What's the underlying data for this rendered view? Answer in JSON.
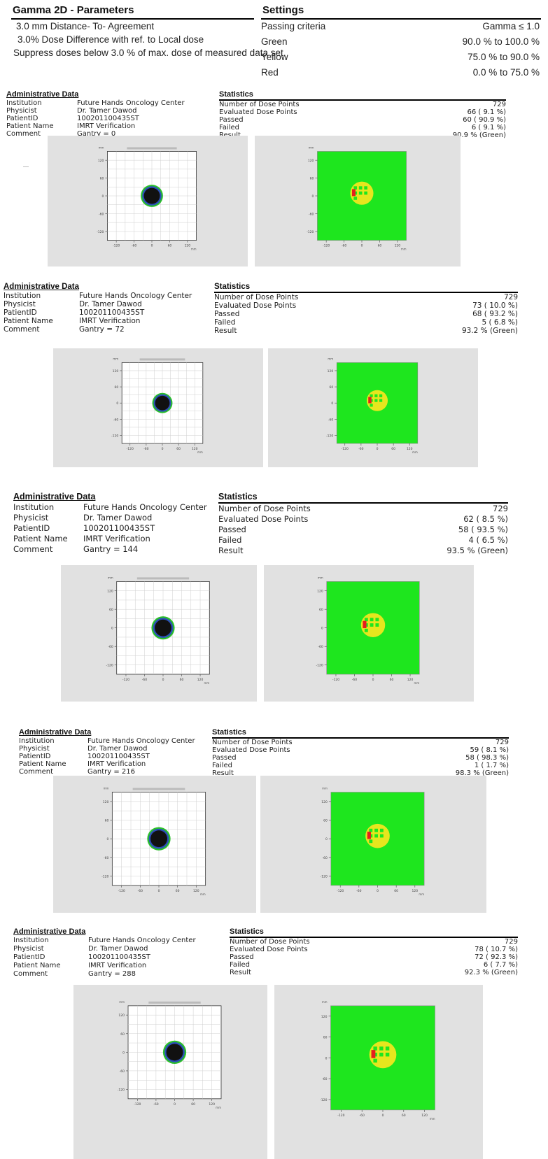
{
  "header": {
    "title": "Gamma 2D - Parameters",
    "lines": [
      "3.0 mm Distance- To- Agreement",
      "3.0% Dose Difference with ref. to Local dose",
      "Suppress doses below 3.0 % of max. dose of measured data set"
    ]
  },
  "settings": {
    "title": "Settings",
    "rows": [
      {
        "label": "Passing criteria",
        "value": "Gamma ≤ 1.0"
      },
      {
        "label": "Green",
        "value": "90.0 % to 100.0 %"
      },
      {
        "label": "Yellow",
        "value": "75.0 % to 90.0 %"
      },
      {
        "label": "Red",
        "value": "0.0 % to 75.0 %"
      }
    ]
  },
  "labels": {
    "admin_title": "Administrative Data",
    "stats_title": "Statistics",
    "institution": "Institution",
    "physicist": "Physicist",
    "patient_id": "PatientID",
    "patient_name": "Patient Name",
    "comment": "Comment",
    "num_points": "Number of Dose Points",
    "eval_points": "Evaluated Dose Points",
    "passed": "Passed",
    "failed": "Failed",
    "result": "Result"
  },
  "colors": {
    "green": "#1ee61e",
    "yellow": "#e6e61e",
    "red": "#e61e1e",
    "panel_bg": "#e1e1e1"
  },
  "sections": [
    {
      "institution": "Future Hands Oncology Center",
      "physicist": "Dr. Tamer Dawod",
      "patient_id": "100201100435ST",
      "patient_name": "IMRT Verification",
      "comment": "Gantry = 0",
      "num_points": "729",
      "eval_points": "66 ( 9.1 %)",
      "passed": "60 ( 90.9 %)",
      "failed": "6 ( 9.1 %)",
      "result": "90.9 % (Green)"
    },
    {
      "institution": "Future Hands Oncology Center",
      "physicist": "Dr. Tamer Dawod",
      "patient_id": "100201100435ST",
      "patient_name": "IMRT Verification",
      "comment": "Gantry = 72",
      "num_points": "729",
      "eval_points": "73 ( 10.0 %)",
      "passed": "68 ( 93.2 %)",
      "failed": "5 ( 6.8 %)",
      "result": "93.2 % (Green)"
    },
    {
      "institution": "Future Hands Oncology Center",
      "physicist": "Dr. Tamer Dawod",
      "patient_id": "100201100435ST",
      "patient_name": "IMRT Verification",
      "comment": "Gantry = 144",
      "num_points": "729",
      "eval_points": "62 ( 8.5 %)",
      "passed": "58 ( 93.5 %)",
      "failed": "4 ( 6.5 %)",
      "result": "93.5 % (Green)"
    },
    {
      "institution": "Future Hands Oncology Center",
      "physicist": "Dr. Tamer Dawod",
      "patient_id": "100201100435ST",
      "patient_name": "IMRT Verification",
      "comment": "Gantry = 216",
      "num_points": "729",
      "eval_points": "59 ( 8.1 %)",
      "passed": "58 ( 98.3 %)",
      "failed": "1 ( 1.7 %)",
      "result": "98.3 % (Green)"
    },
    {
      "institution": "Future Hands Oncology Center",
      "physicist": "Dr. Tamer Dawod",
      "patient_id": "100201100435ST",
      "patient_name": "IMRT Verification",
      "comment": "Gantry = 288",
      "num_points": "729",
      "eval_points": "78 ( 10.7 %)",
      "passed": "72 ( 92.3 %)",
      "failed": "6 ( 7.7 %)",
      "result": "92.3 % (Green)"
    }
  ],
  "plot_ticks": {
    "y": [
      "120",
      "60",
      "0",
      "-60",
      "-120"
    ],
    "x": [
      "-120",
      "-60",
      "0",
      "60",
      "120"
    ],
    "unit": "mm"
  }
}
